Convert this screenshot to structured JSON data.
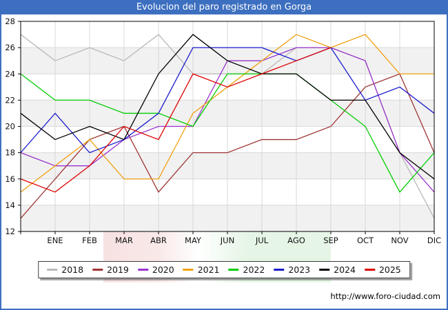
{
  "window": {
    "title": "Evolucion del paro registrado en Gorga",
    "frame_color": "#3d6fc0"
  },
  "footer": {
    "url": "http://www.foro-ciudad.com"
  },
  "chart_data": {
    "type": "line",
    "title": "Evolucion del paro registrado en Gorga",
    "xlabel": "",
    "ylabel": "",
    "x_tick_labels": [
      "ENE",
      "FEB",
      "MAR",
      "ABR",
      "MAY",
      "JUN",
      "JUL",
      "AGO",
      "SEP",
      "OCT",
      "NOV",
      "DIC"
    ],
    "first_point_is_unlabeled_previous_december": true,
    "y_ticks": [
      12,
      14,
      16,
      18,
      20,
      22,
      24,
      26,
      28
    ],
    "ylim": [
      12,
      28
    ],
    "grid": true,
    "band_fill_ranges": [
      [
        24,
        26
      ],
      [
        20,
        22
      ],
      [
        16,
        18
      ],
      [
        12,
        14
      ]
    ],
    "legend_position": "bottom",
    "series": [
      {
        "name": "2018",
        "color": "#b8b8b8",
        "values": [
          27,
          25,
          26,
          25,
          27,
          24,
          24,
          24,
          26,
          26,
          25,
          18,
          13
        ]
      },
      {
        "name": "2019",
        "color": "#9e3434",
        "values": [
          13,
          16,
          19,
          20,
          15,
          18,
          18,
          19,
          19,
          20,
          23,
          24,
          18
        ]
      },
      {
        "name": "2020",
        "color": "#9933cc",
        "values": [
          18,
          17,
          17,
          19,
          20,
          20,
          25,
          25,
          26,
          26,
          25,
          18,
          15
        ]
      },
      {
        "name": "2021",
        "color": "#f0a010",
        "values": [
          15,
          17,
          19,
          16,
          16,
          21,
          23,
          25,
          27,
          26,
          27,
          24,
          24
        ]
      },
      {
        "name": "2022",
        "color": "#00cc00",
        "values": [
          24,
          22,
          22,
          21,
          21,
          20,
          24,
          24,
          24,
          22,
          20,
          15,
          18
        ]
      },
      {
        "name": "2023",
        "color": "#1a1acc",
        "values": [
          18,
          21,
          18,
          19,
          21,
          26,
          26,
          26,
          25,
          26,
          22,
          23,
          21
        ]
      },
      {
        "name": "2024",
        "color": "#000000",
        "values": [
          21,
          19,
          20,
          19,
          24,
          27,
          25,
          24,
          24,
          22,
          22,
          18,
          16
        ]
      },
      {
        "name": "2025",
        "color": "#dd0000",
        "values": [
          16,
          15,
          17,
          20,
          19,
          24,
          23,
          24,
          25,
          26
        ]
      }
    ]
  }
}
